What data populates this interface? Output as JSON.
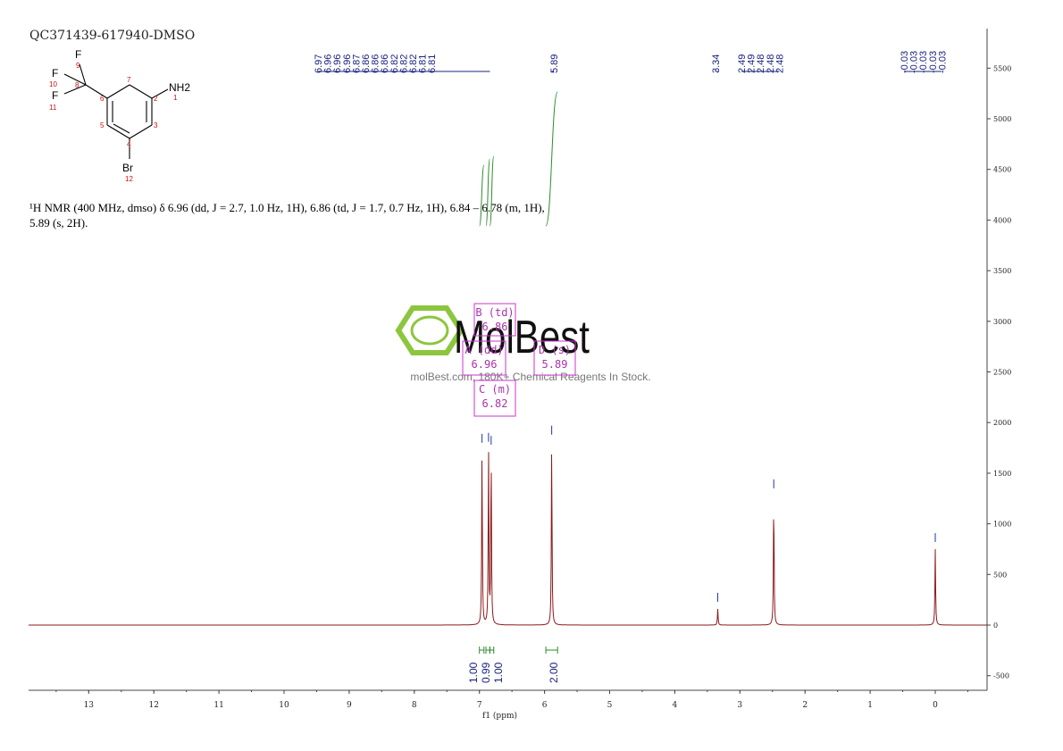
{
  "sample_id": "QC371439-617940-DMSO",
  "nmr_description": "¹H NMR (400 MHz, dmso) δ 6.96 (dd, J = 2.7, 1.0 Hz, 1H), 6.86 (td, J = 1.7, 0.7 Hz, 1H), 6.84 – 6.78 (m, 1H), 5.89 (s, 2H).",
  "structure": {
    "atom_labels": [
      "F",
      "F",
      "F",
      "NH2",
      "Br"
    ],
    "atom_numbers": [
      "1",
      "2",
      "3",
      "4",
      "5",
      "6",
      "7",
      "8",
      "9",
      "10",
      "11",
      "12"
    ]
  },
  "watermark": {
    "brand": "MolBest",
    "tagline": "molBest.com, 180K+ Chemical Reagents In Stock."
  },
  "chart_data": {
    "type": "line",
    "xlabel": "f1 (ppm)",
    "ylabel": "",
    "xlim": [
      14,
      -0.8
    ],
    "ylim": [
      -600,
      5900
    ],
    "x_reversed": true,
    "x_ticks": [
      13,
      12,
      11,
      10,
      9,
      8,
      7,
      6,
      5,
      4,
      3,
      2,
      1,
      0
    ],
    "y_ticks": [
      5500,
      5000,
      4500,
      4000,
      3500,
      3000,
      2500,
      2000,
      1500,
      1000,
      500,
      0,
      -500
    ],
    "peaks": [
      {
        "ppm": 6.96,
        "height": 1730
      },
      {
        "ppm": 6.86,
        "height": 1740
      },
      {
        "ppm": 6.82,
        "height": 1710
      },
      {
        "ppm": 5.89,
        "height": 1810
      },
      {
        "ppm": 3.34,
        "height": 160
      },
      {
        "ppm": 2.48,
        "height": 1280
      },
      {
        "ppm": 0.0,
        "height": 750
      }
    ],
    "peak_labels": [
      {
        "group": "aromatic",
        "labels": [
          "6.97",
          "6.96",
          "6.96",
          "6.96",
          "6.87",
          "6.86",
          "6.86",
          "6.86",
          "6.82",
          "6.82",
          "6.82",
          "6.81",
          "6.81"
        ],
        "target": 6.84
      },
      {
        "group": "nh2",
        "labels": [
          "5.89"
        ],
        "target": 5.89
      },
      {
        "group": "water",
        "labels": [
          "3.34"
        ],
        "target": 3.34
      },
      {
        "group": "dmso",
        "labels": [
          "2.49",
          "2.49",
          "2.48",
          "2.48",
          "2.48"
        ],
        "target": 2.48
      },
      {
        "group": "tms",
        "labels": [
          "-0.03",
          "-0.03",
          "-0.03",
          "-0.03",
          "-0.03"
        ],
        "target": 0.0
      }
    ],
    "multiplets": [
      {
        "label": "B (td)",
        "value": "6.86"
      },
      {
        "label": "A (dd)",
        "value": "6.96"
      },
      {
        "label": "D (s)",
        "value": "5.89"
      },
      {
        "label": "C (m)",
        "value": "6.82"
      }
    ],
    "integrals": [
      {
        "from": 7.0,
        "to": 6.93,
        "value": "1.00"
      },
      {
        "from": 6.9,
        "to": 6.84,
        "value": "0.99"
      },
      {
        "from": 6.84,
        "to": 6.78,
        "value": "1.00"
      },
      {
        "from": 5.98,
        "to": 5.8,
        "value": "2.00"
      }
    ]
  }
}
